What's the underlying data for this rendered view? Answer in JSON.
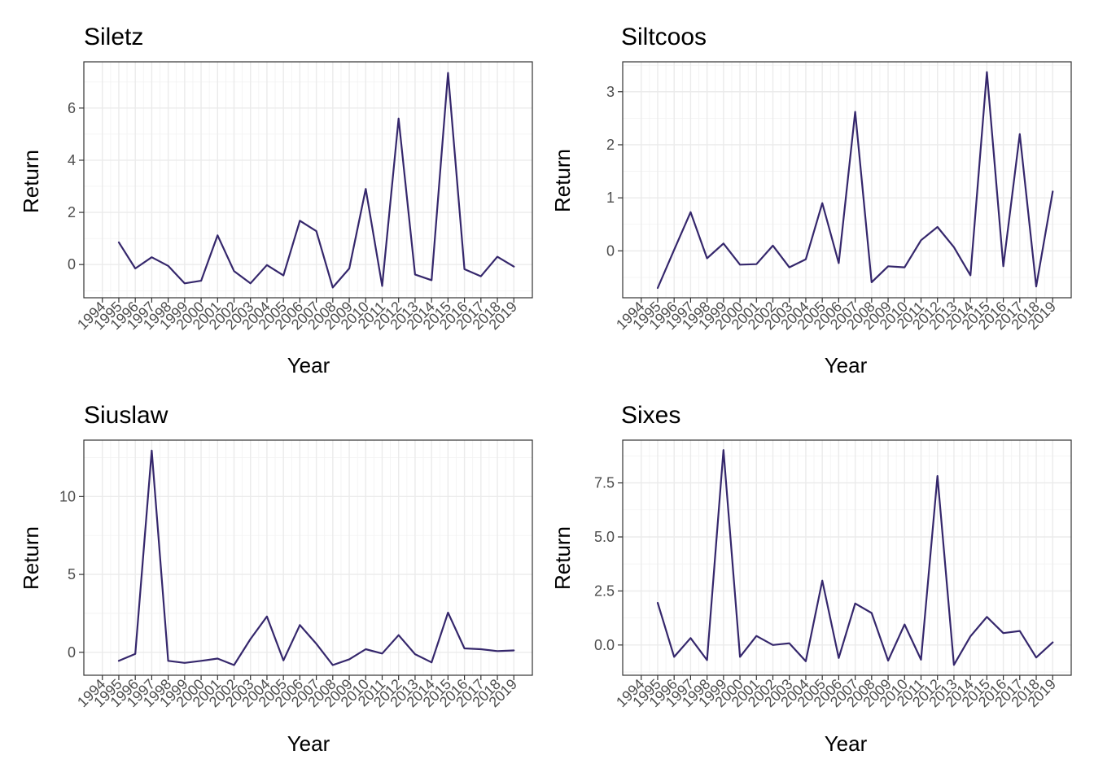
{
  "colors": {
    "line": "#35276c",
    "background": "#ffffff",
    "grid": "#ebebeb",
    "frame": "#333333"
  },
  "chart_data": [
    {
      "type": "line",
      "title": "Siletz",
      "xlabel": "Year",
      "ylabel": "Return",
      "xlim": [
        1994,
        2019
      ],
      "ylim": [
        -0.9,
        7.4
      ],
      "yticks": [
        0,
        2,
        4,
        6
      ],
      "ytick_labels": [
        "0",
        "2",
        "4",
        "6"
      ],
      "grid": true,
      "x": [
        1995,
        1996,
        1997,
        1998,
        1999,
        2000,
        2001,
        2002,
        2003,
        2004,
        2005,
        2006,
        2007,
        2008,
        2009,
        2010,
        2011,
        2012,
        2013,
        2014,
        2015,
        2016,
        2017,
        2018,
        2019
      ],
      "series": [
        {
          "values": [
            0.85,
            -0.15,
            0.28,
            -0.05,
            -0.72,
            -0.62,
            1.12,
            -0.25,
            -0.72,
            -0.02,
            -0.42,
            1.68,
            1.28,
            -0.88,
            -0.15,
            2.9,
            -0.82,
            5.6,
            -0.38,
            -0.6,
            7.35,
            -0.18,
            -0.45,
            0.3,
            -0.08
          ]
        }
      ]
    },
    {
      "type": "line",
      "title": "Siltcoos",
      "xlabel": "Year",
      "ylabel": "Return",
      "xlim": [
        1994,
        2019
      ],
      "ylim": [
        -0.7,
        3.38
      ],
      "yticks": [
        0,
        1,
        2,
        3
      ],
      "ytick_labels": [
        "0",
        "1",
        "2",
        "3"
      ],
      "grid": true,
      "x": [
        1995,
        1996,
        1997,
        1998,
        1999,
        2000,
        2001,
        2002,
        2003,
        2004,
        2005,
        2006,
        2007,
        2008,
        2009,
        2010,
        2011,
        2012,
        2013,
        2014,
        2015,
        2016,
        2017,
        2018,
        2019
      ],
      "series": [
        {
          "values": [
            -0.7,
            0.02,
            0.73,
            -0.14,
            0.14,
            -0.26,
            -0.25,
            0.1,
            -0.31,
            -0.16,
            0.9,
            -0.23,
            2.62,
            -0.59,
            -0.29,
            -0.31,
            0.2,
            0.45,
            0.07,
            -0.46,
            3.37,
            -0.29,
            2.2,
            -0.67,
            1.12
          ]
        }
      ]
    },
    {
      "type": "line",
      "title": "Siuslaw",
      "xlabel": "Year",
      "ylabel": "Return",
      "xlim": [
        1994,
        2019
      ],
      "ylim": [
        -0.85,
        13.0
      ],
      "yticks": [
        0,
        5,
        10
      ],
      "ytick_labels": [
        "0",
        "5",
        "10"
      ],
      "grid": true,
      "x": [
        1995,
        1996,
        1997,
        1998,
        1999,
        2000,
        2001,
        2002,
        2003,
        2004,
        2005,
        2006,
        2007,
        2008,
        2009,
        2010,
        2011,
        2012,
        2013,
        2014,
        2015,
        2016,
        2017,
        2018,
        2019
      ],
      "series": [
        {
          "values": [
            -0.55,
            -0.1,
            12.95,
            -0.55,
            -0.68,
            -0.55,
            -0.4,
            -0.82,
            0.85,
            2.3,
            -0.52,
            1.75,
            0.55,
            -0.82,
            -0.45,
            0.2,
            -0.08,
            1.1,
            -0.12,
            -0.65,
            2.55,
            0.25,
            0.2,
            0.08,
            0.12
          ]
        }
      ]
    },
    {
      "type": "line",
      "title": "Sixes",
      "xlabel": "Year",
      "ylabel": "Return",
      "xlim": [
        1994,
        2019
      ],
      "ylim": [
        -0.95,
        9.03
      ],
      "yticks": [
        0,
        2.5,
        5,
        7.5
      ],
      "ytick_labels": [
        "0.0",
        "2.5",
        "5.0",
        "7.5"
      ],
      "grid": true,
      "x": [
        1995,
        1996,
        1997,
        1998,
        1999,
        2000,
        2001,
        2002,
        2003,
        2004,
        2005,
        2006,
        2007,
        2008,
        2009,
        2010,
        2011,
        2012,
        2013,
        2014,
        2015,
        2016,
        2017,
        2018,
        2019
      ],
      "series": [
        {
          "values": [
            1.95,
            -0.55,
            0.32,
            -0.7,
            9.02,
            -0.55,
            0.42,
            0.0,
            0.08,
            -0.75,
            2.98,
            -0.6,
            1.92,
            1.48,
            -0.72,
            0.95,
            -0.68,
            7.82,
            -0.92,
            0.4,
            1.3,
            0.55,
            0.65,
            -0.58,
            0.12
          ]
        }
      ]
    }
  ]
}
